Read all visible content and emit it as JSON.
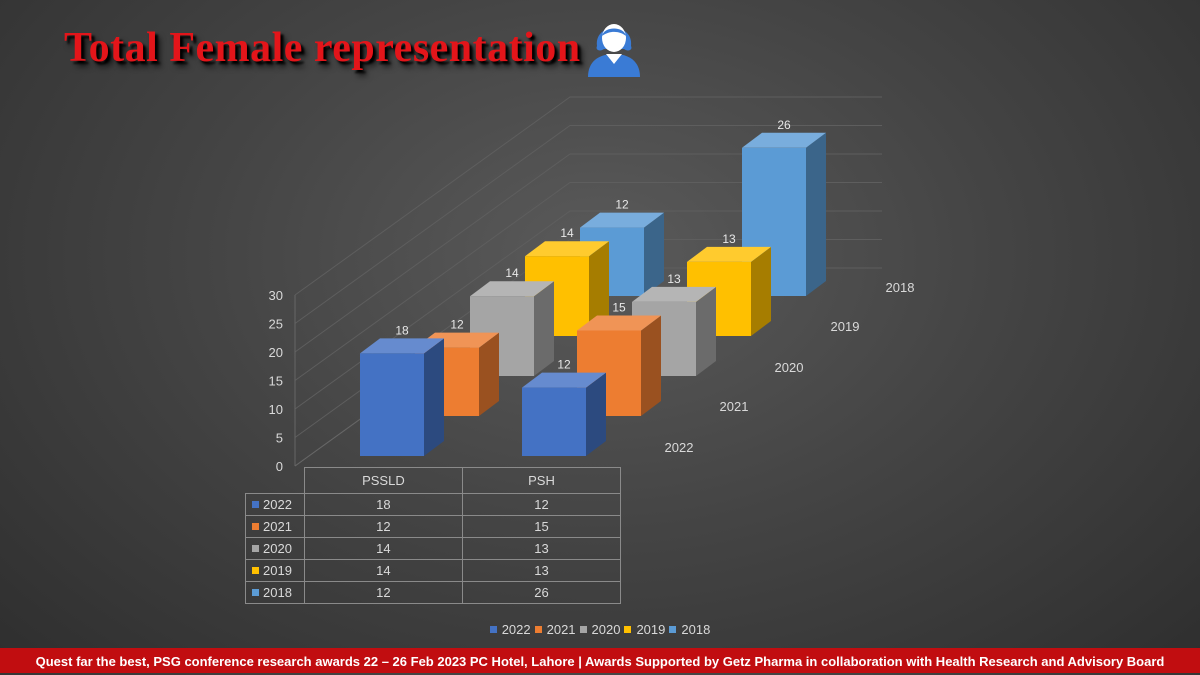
{
  "title": "Total Female representation",
  "icon": "female-user-icon",
  "chart_data": {
    "type": "bar",
    "variant": "3d-column",
    "categories": [
      "PSSLD",
      "PSH"
    ],
    "series": [
      {
        "name": "2022",
        "values": [
          18,
          12
        ],
        "color": "#4472c4"
      },
      {
        "name": "2021",
        "values": [
          12,
          15
        ],
        "color": "#ed7d31"
      },
      {
        "name": "2020",
        "values": [
          14,
          13
        ],
        "color": "#a5a5a5"
      },
      {
        "name": "2019",
        "values": [
          14,
          13
        ],
        "color": "#ffc000"
      },
      {
        "name": "2018",
        "values": [
          12,
          26
        ],
        "color": "#5b9bd5"
      }
    ],
    "yticks": [
      0,
      5,
      10,
      15,
      20,
      25,
      30
    ],
    "ylim": [
      0,
      30
    ],
    "data_labels": true,
    "data_table": true,
    "legend": "bottom",
    "grid": true
  },
  "footer": "Quest far the best, PSG conference research awards 22 – 26 Feb 2023 PC Hotel, Lahore | Awards Supported by Getz Pharma in collaboration with Health Research and Advisory Board"
}
